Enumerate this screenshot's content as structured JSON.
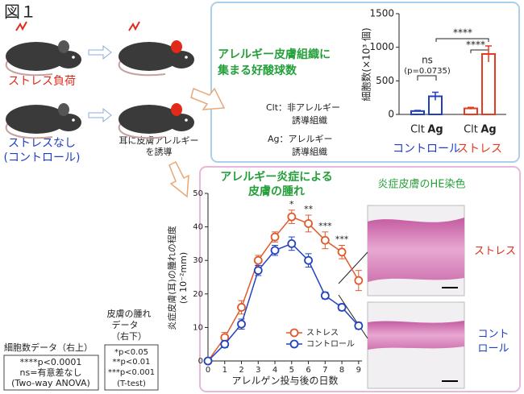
{
  "figure_label": "図１",
  "mice": {
    "stress": "ストレス負荷",
    "control_lines": [
      "ストレスなし",
      "(コントロール)"
    ],
    "induce_lines": [
      "耳に皮膚アレルギー",
      "を誘導"
    ]
  },
  "notes": {
    "cell": {
      "title": "細胞数データ（右上）",
      "lines": [
        "****p<0.0001",
        "ns=有意差なし",
        "(Two-way ANOVA)"
      ]
    },
    "swelling": {
      "title_lines": [
        "皮膚の腫れ",
        "データ",
        "（右下）"
      ],
      "lines": [
        "*p<0.05",
        "**p<0.01",
        "***p<0.001",
        "(T-test)"
      ]
    }
  },
  "chart_data": [
    {
      "type": "bar",
      "title_lines": [
        "アレルギー皮膚組織に",
        "集まる好酸球数"
      ],
      "notes": [
        "Clt：非アレルギー",
        "誘導組織",
        "Ag：アレルギー",
        "誘導組織"
      ],
      "ylabel": "細胞数(×10³ 個)",
      "series": [
        {
          "name": "コントロール",
          "color": "#1f3fbf",
          "categories": [
            "Clt",
            "Ag"
          ],
          "values": [
            50,
            270
          ],
          "errors": [
            10,
            60
          ]
        },
        {
          "name": "ストレス",
          "color": "#e63b20",
          "categories": [
            "Clt",
            "Ag"
          ],
          "values": [
            90,
            900
          ],
          "errors": [
            15,
            120
          ]
        }
      ],
      "ylim": [
        0,
        1500
      ],
      "yticks": [
        0,
        500,
        1000,
        1500
      ],
      "annotations": [
        "ns",
        "(p=0.0735)",
        "****",
        "****"
      ]
    },
    {
      "type": "line",
      "title_lines": [
        "アレルギー炎症による",
        "皮膚の腫れ"
      ],
      "ylabel_lines": [
        "炎症皮膚(耳)の腫れの程度",
        "(x 10⁻²mm)"
      ],
      "xlabel": "アレルゲン投与後の日数",
      "x": [
        0,
        1,
        2,
        3,
        4,
        5,
        6,
        7,
        8,
        9
      ],
      "series": [
        {
          "name": "ストレス",
          "color": "#e05a2b",
          "values": [
            0,
            7,
            16,
            30,
            37,
            43,
            41,
            36,
            32.5,
            24
          ],
          "errors": [
            0,
            1.5,
            2,
            1.5,
            1.5,
            2,
            2.5,
            2.5,
            2,
            3
          ]
        },
        {
          "name": "コントロール",
          "color": "#2342c0",
          "values": [
            0,
            5,
            11,
            27,
            33,
            35,
            30,
            19.5,
            16,
            10.5
          ],
          "errors": [
            0,
            1,
            1.5,
            1.5,
            1.5,
            2,
            2,
            1,
            1,
            1
          ]
        }
      ],
      "xlim": [
        0,
        9.2
      ],
      "ylim": [
        0,
        50
      ],
      "xticks": [
        0,
        1,
        2,
        3,
        4,
        5,
        6,
        7,
        8,
        9
      ],
      "yticks": [
        0,
        10,
        20,
        30,
        40,
        50
      ],
      "significance": [
        {
          "x": 5,
          "text": "*"
        },
        {
          "x": 6,
          "text": "**"
        },
        {
          "x": 7,
          "text": "***"
        },
        {
          "x": 8,
          "text": "***"
        }
      ],
      "legend": "lower right",
      "image_title": "炎症皮膚のHE染色",
      "image_labels": {
        "stress": "ストレス",
        "control_lines": [
          "コント",
          "ロール"
        ]
      }
    }
  ]
}
